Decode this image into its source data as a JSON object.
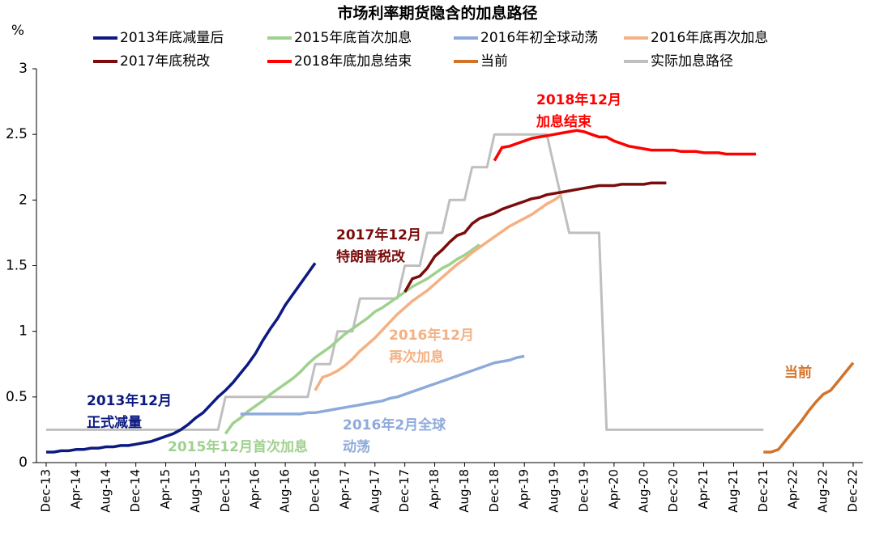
{
  "chart_data": {
    "type": "line",
    "title": "市场利率期货隐含的加息路径",
    "y_label": "%",
    "categories": [
      "Dec-13",
      null,
      null,
      null,
      "Apr-14",
      null,
      null,
      null,
      "Aug-14",
      null,
      null,
      null,
      "Dec-14",
      null,
      null,
      null,
      "Apr-15",
      null,
      null,
      null,
      "Aug-15",
      null,
      null,
      null,
      "Dec-15",
      null,
      null,
      null,
      "Apr-16",
      null,
      null,
      null,
      "Aug-16",
      null,
      null,
      null,
      "Dec-16",
      null,
      null,
      null,
      "Apr-17",
      null,
      null,
      null,
      "Aug-17",
      null,
      null,
      null,
      "Dec-17",
      null,
      null,
      null,
      "Apr-18",
      null,
      null,
      null,
      "Aug-18",
      null,
      null,
      null,
      "Dec-18",
      null,
      null,
      null,
      "Apr-19",
      null,
      null,
      null,
      "Aug-19",
      null,
      null,
      null,
      "Dec-19",
      null,
      null,
      null,
      "Apr-20",
      null,
      null,
      null,
      "Aug-20",
      null,
      null,
      null,
      "Dec-20",
      null,
      null,
      null,
      "Apr-21",
      null,
      null,
      null,
      "Aug-21",
      null,
      null,
      null,
      "Dec-21",
      null,
      null,
      null,
      "Apr-22",
      null,
      null,
      null,
      "Aug-22",
      null,
      null,
      null,
      "Dec-22"
    ],
    "ylim": [
      0,
      3
    ],
    "yticks": [
      0,
      0.5,
      1,
      1.5,
      2,
      2.5,
      3
    ],
    "series": [
      {
        "name": "2013年底减量后",
        "color": "#0d1a80",
        "values": [
          0.08,
          0.08,
          0.09,
          0.09,
          0.1,
          0.1,
          0.11,
          0.11,
          0.12,
          0.12,
          0.13,
          0.13,
          0.14,
          0.15,
          0.16,
          0.18,
          0.2,
          0.22,
          0.25,
          0.29,
          0.34,
          0.38,
          0.44,
          0.5,
          0.55,
          0.61,
          0.68,
          0.75,
          0.83,
          0.93,
          1.02,
          1.1,
          1.2,
          1.28,
          1.36,
          1.44,
          1.52,
          null,
          null,
          null,
          null,
          null,
          null,
          null,
          null,
          null,
          null,
          null,
          null,
          null,
          null,
          null,
          null,
          null,
          null,
          null,
          null,
          null,
          null,
          null,
          null,
          null,
          null,
          null,
          null,
          null,
          null,
          null,
          null,
          null,
          null,
          null,
          null,
          null,
          null,
          null,
          null,
          null,
          null,
          null,
          null,
          null,
          null,
          null,
          null,
          null,
          null,
          null,
          null,
          null,
          null,
          null,
          null,
          null,
          null,
          null,
          null,
          null,
          null,
          null,
          null,
          null,
          null,
          null,
          null,
          null,
          null,
          null,
          null
        ]
      },
      {
        "name": "2015年底首次加息",
        "color": "#9fd18e",
        "values": [
          null,
          null,
          null,
          null,
          null,
          null,
          null,
          null,
          null,
          null,
          null,
          null,
          null,
          null,
          null,
          null,
          null,
          null,
          null,
          null,
          null,
          null,
          null,
          null,
          0.22,
          0.3,
          0.34,
          0.39,
          0.43,
          0.47,
          0.52,
          0.56,
          0.6,
          0.64,
          0.69,
          0.75,
          0.8,
          0.84,
          0.88,
          0.93,
          0.98,
          1.02,
          1.06,
          1.1,
          1.15,
          1.18,
          1.22,
          1.26,
          1.3,
          1.34,
          1.37,
          1.4,
          1.44,
          1.48,
          1.51,
          1.55,
          1.58,
          1.62,
          1.66,
          null,
          null,
          null,
          null,
          null,
          null,
          null,
          null,
          null,
          null,
          null,
          null,
          null,
          null,
          null,
          null,
          null,
          null,
          null,
          null,
          null,
          null,
          null,
          null,
          null,
          null,
          null,
          null,
          null,
          null,
          null,
          null,
          null,
          null,
          null,
          null,
          null,
          null,
          null,
          null,
          null,
          null,
          null,
          null,
          null,
          null,
          null,
          null,
          null,
          null
        ]
      },
      {
        "name": "2016年初全球动荡",
        "color": "#8eaadb",
        "values": [
          null,
          null,
          null,
          null,
          null,
          null,
          null,
          null,
          null,
          null,
          null,
          null,
          null,
          null,
          null,
          null,
          null,
          null,
          null,
          null,
          null,
          null,
          null,
          null,
          null,
          null,
          0.37,
          0.37,
          0.37,
          0.37,
          0.37,
          0.37,
          0.37,
          0.37,
          0.37,
          0.38,
          0.38,
          0.39,
          0.4,
          0.41,
          0.42,
          0.43,
          0.44,
          0.45,
          0.46,
          0.47,
          0.49,
          0.5,
          0.52,
          0.54,
          0.56,
          0.58,
          0.6,
          0.62,
          0.64,
          0.66,
          0.68,
          0.7,
          0.72,
          0.74,
          0.76,
          0.77,
          0.78,
          0.8,
          0.81,
          null,
          null,
          null,
          null,
          null,
          null,
          null,
          null,
          null,
          null,
          null,
          null,
          null,
          null,
          null,
          null,
          null,
          null,
          null,
          null,
          null,
          null,
          null,
          null,
          null,
          null,
          null,
          null,
          null,
          null,
          null,
          null,
          null,
          null,
          null,
          null,
          null,
          null,
          null,
          null,
          null,
          null,
          null,
          null
        ]
      },
      {
        "name": "2016年底再次加息",
        "color": "#f4b183",
        "values": [
          null,
          null,
          null,
          null,
          null,
          null,
          null,
          null,
          null,
          null,
          null,
          null,
          null,
          null,
          null,
          null,
          null,
          null,
          null,
          null,
          null,
          null,
          null,
          null,
          null,
          null,
          null,
          null,
          null,
          null,
          null,
          null,
          null,
          null,
          null,
          null,
          0.55,
          0.65,
          0.67,
          0.7,
          0.74,
          0.79,
          0.85,
          0.9,
          0.95,
          1.01,
          1.07,
          1.13,
          1.18,
          1.23,
          1.27,
          1.31,
          1.36,
          1.41,
          1.46,
          1.51,
          1.55,
          1.6,
          1.64,
          1.68,
          1.72,
          1.76,
          1.8,
          1.83,
          1.86,
          1.89,
          1.93,
          1.97,
          2.0,
          2.04,
          null,
          null,
          null,
          null,
          null,
          null,
          null,
          null,
          null,
          null,
          null,
          null,
          null,
          null,
          null,
          null,
          null,
          null,
          null,
          null,
          null,
          null,
          null,
          null,
          null,
          null,
          null,
          null,
          null,
          null,
          null,
          null,
          null,
          null,
          null,
          null,
          null,
          null,
          null
        ]
      },
      {
        "name": "2017年底税改",
        "color": "#7b0c0c",
        "values": [
          null,
          null,
          null,
          null,
          null,
          null,
          null,
          null,
          null,
          null,
          null,
          null,
          null,
          null,
          null,
          null,
          null,
          null,
          null,
          null,
          null,
          null,
          null,
          null,
          null,
          null,
          null,
          null,
          null,
          null,
          null,
          null,
          null,
          null,
          null,
          null,
          null,
          null,
          null,
          null,
          null,
          null,
          null,
          null,
          null,
          null,
          null,
          null,
          1.3,
          1.4,
          1.42,
          1.48,
          1.57,
          1.62,
          1.68,
          1.73,
          1.75,
          1.82,
          1.86,
          1.88,
          1.9,
          1.93,
          1.95,
          1.97,
          1.99,
          2.01,
          2.02,
          2.04,
          2.05,
          2.06,
          2.07,
          2.08,
          2.09,
          2.1,
          2.11,
          2.11,
          2.11,
          2.12,
          2.12,
          2.12,
          2.12,
          2.13,
          2.13,
          2.13,
          null,
          null,
          null,
          null,
          null,
          null,
          null,
          null,
          null,
          null,
          null,
          null,
          null,
          null,
          null,
          null,
          null,
          null,
          null,
          null,
          null,
          null,
          null,
          null,
          null
        ]
      },
      {
        "name": "2018年底加息结束",
        "color": "#ff0000",
        "values": [
          null,
          null,
          null,
          null,
          null,
          null,
          null,
          null,
          null,
          null,
          null,
          null,
          null,
          null,
          null,
          null,
          null,
          null,
          null,
          null,
          null,
          null,
          null,
          null,
          null,
          null,
          null,
          null,
          null,
          null,
          null,
          null,
          null,
          null,
          null,
          null,
          null,
          null,
          null,
          null,
          null,
          null,
          null,
          null,
          null,
          null,
          null,
          null,
          null,
          null,
          null,
          null,
          null,
          null,
          null,
          null,
          null,
          null,
          null,
          null,
          2.3,
          2.4,
          2.41,
          2.43,
          2.45,
          2.47,
          2.48,
          2.49,
          2.5,
          2.51,
          2.52,
          2.53,
          2.52,
          2.5,
          2.48,
          2.48,
          2.45,
          2.43,
          2.41,
          2.4,
          2.39,
          2.38,
          2.38,
          2.38,
          2.38,
          2.37,
          2.37,
          2.37,
          2.36,
          2.36,
          2.36,
          2.35,
          2.35,
          2.35,
          2.35,
          2.35,
          null,
          null,
          null,
          null,
          null,
          null,
          null,
          null,
          null,
          null,
          null,
          null,
          null
        ]
      },
      {
        "name": "当前",
        "color": "#d2732a",
        "values": [
          null,
          null,
          null,
          null,
          null,
          null,
          null,
          null,
          null,
          null,
          null,
          null,
          null,
          null,
          null,
          null,
          null,
          null,
          null,
          null,
          null,
          null,
          null,
          null,
          null,
          null,
          null,
          null,
          null,
          null,
          null,
          null,
          null,
          null,
          null,
          null,
          null,
          null,
          null,
          null,
          null,
          null,
          null,
          null,
          null,
          null,
          null,
          null,
          null,
          null,
          null,
          null,
          null,
          null,
          null,
          null,
          null,
          null,
          null,
          null,
          null,
          null,
          null,
          null,
          null,
          null,
          null,
          null,
          null,
          null,
          null,
          null,
          null,
          null,
          null,
          null,
          null,
          null,
          null,
          null,
          null,
          null,
          null,
          null,
          null,
          null,
          null,
          null,
          null,
          null,
          null,
          null,
          null,
          null,
          null,
          null,
          0.08,
          0.08,
          0.1,
          0.17,
          0.24,
          0.31,
          0.39,
          0.46,
          0.52,
          0.55,
          0.62,
          0.69,
          0.76
        ]
      },
      {
        "name": "实际加息路径",
        "color": "#bfbfbf",
        "values": [
          0.25,
          0.25,
          0.25,
          0.25,
          0.25,
          0.25,
          0.25,
          0.25,
          0.25,
          0.25,
          0.25,
          0.25,
          0.25,
          0.25,
          0.25,
          0.25,
          0.25,
          0.25,
          0.25,
          0.25,
          0.25,
          0.25,
          0.25,
          0.25,
          0.5,
          0.5,
          0.5,
          0.5,
          0.5,
          0.5,
          0.5,
          0.5,
          0.5,
          0.5,
          0.5,
          0.5,
          0.75,
          0.75,
          0.75,
          1,
          1,
          1,
          1.25,
          1.25,
          1.25,
          1.25,
          1.25,
          1.25,
          1.5,
          1.5,
          1.5,
          1.75,
          1.75,
          1.75,
          2,
          2,
          2,
          2.25,
          2.25,
          2.25,
          2.5,
          2.5,
          2.5,
          2.5,
          2.5,
          2.5,
          2.5,
          2.5,
          2.25,
          2,
          1.75,
          1.75,
          1.75,
          1.75,
          1.75,
          0.25,
          0.25,
          0.25,
          0.25,
          0.25,
          0.25,
          0.25,
          0.25,
          0.25,
          0.25,
          0.25,
          0.25,
          0.25,
          0.25,
          0.25,
          0.25,
          0.25,
          0.25,
          0.25,
          0.25,
          0.25,
          0.25,
          null,
          null,
          null,
          null,
          null,
          null,
          null,
          null,
          null,
          null,
          null,
          null
        ]
      }
    ],
    "annotations": [
      {
        "lines": [
          "2013年12月",
          "正式减量"
        ],
        "color": "#0d1a80"
      },
      {
        "lines": [
          "2015年12月首次加息"
        ],
        "color": "#9fd18e"
      },
      {
        "lines": [
          "2016年2月全球",
          "动荡"
        ],
        "color": "#8eaadb"
      },
      {
        "lines": [
          "2016年12月",
          "再次加息"
        ],
        "color": "#f4b183"
      },
      {
        "lines": [
          "2017年12月",
          "特朗普税改"
        ],
        "color": "#7b0c0c"
      },
      {
        "lines": [
          "2018年12月",
          "加息结束"
        ],
        "color": "#ff0000"
      },
      {
        "lines": [
          "当前"
        ],
        "color": "#d2732a"
      }
    ]
  }
}
